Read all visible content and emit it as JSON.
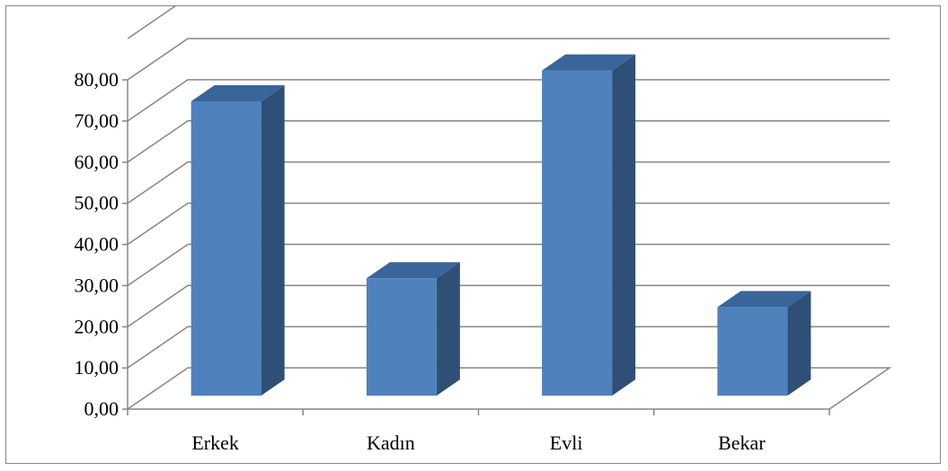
{
  "chart_data": {
    "type": "bar",
    "title": "",
    "xlabel": "",
    "ylabel": "",
    "categories": [
      "Erkek",
      "Kadın",
      "Evli",
      "Bekar"
    ],
    "series": [
      {
        "values": [
          71.5,
          28.5,
          79.0,
          21.5
        ]
      }
    ],
    "ylim": [
      0,
      80
    ],
    "y_ticks": [
      "0,00",
      "10,00",
      "20,00",
      "30,00",
      "40,00",
      "50,00",
      "60,00",
      "70,00",
      "80,00"
    ],
    "grid": true,
    "legend": "none",
    "style": "3d-column",
    "colors": {
      "bar_front": "#4f81bd",
      "bar_top": "#3a659a",
      "bar_side": "#2f4f77",
      "grid": "#868686",
      "axis": "#868686"
    }
  }
}
